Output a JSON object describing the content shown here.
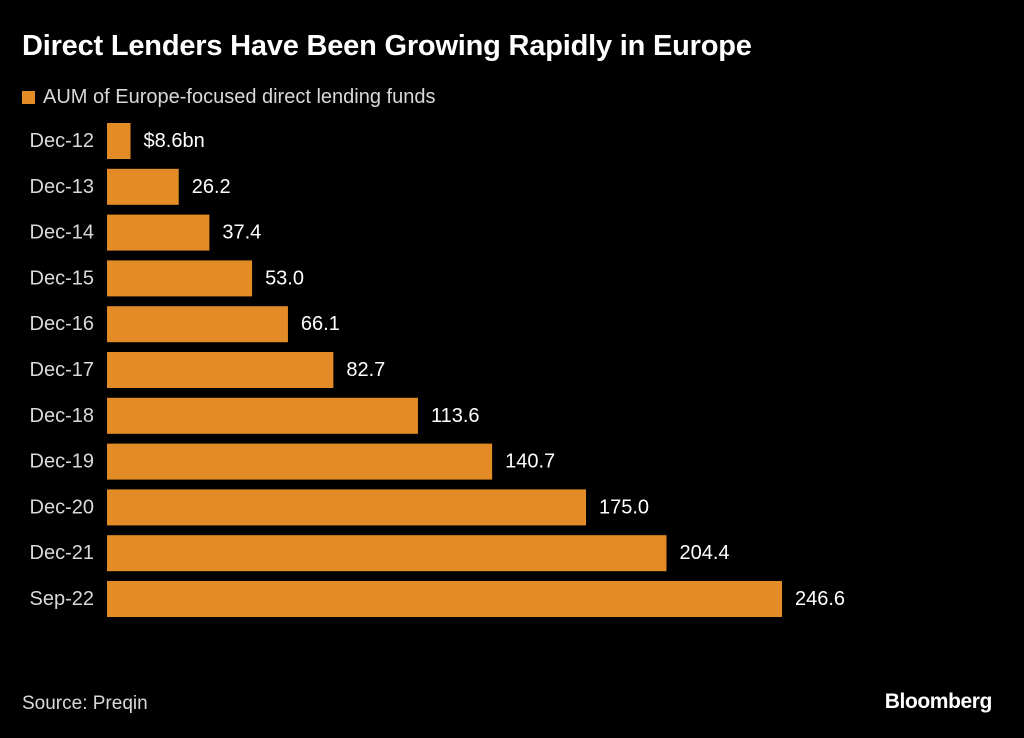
{
  "title": "Direct Lenders Have Been Growing Rapidly in Europe",
  "source": "Source: Preqin",
  "brand": "Bloomberg",
  "colors": {
    "background": "#000000",
    "bar": "#e38b26",
    "text": "#ffffff",
    "muted_text": "#d9d9d9"
  },
  "chart_data": {
    "type": "bar",
    "orientation": "horizontal",
    "categories": [
      "Dec-12",
      "Dec-13",
      "Dec-14",
      "Dec-15",
      "Dec-16",
      "Dec-17",
      "Dec-18",
      "Dec-19",
      "Dec-20",
      "Dec-21",
      "Sep-22"
    ],
    "series": [
      {
        "name": "AUM of Europe-focused direct lending funds",
        "values": [
          8.6,
          26.2,
          37.4,
          53.0,
          66.1,
          82.7,
          113.6,
          140.7,
          175.0,
          204.4,
          246.6
        ]
      }
    ],
    "data_labels": [
      "$8.6bn",
      "26.2",
      "37.4",
      "53.0",
      "66.1",
      "82.7",
      "113.6",
      "140.7",
      "175.0",
      "204.4",
      "246.6"
    ],
    "title": "Direct Lenders Have Been Growing Rapidly in Europe",
    "xlabel": "",
    "ylabel": "",
    "xlim": [
      0,
      246.6
    ],
    "grid": false,
    "legend_position": "top-left"
  }
}
